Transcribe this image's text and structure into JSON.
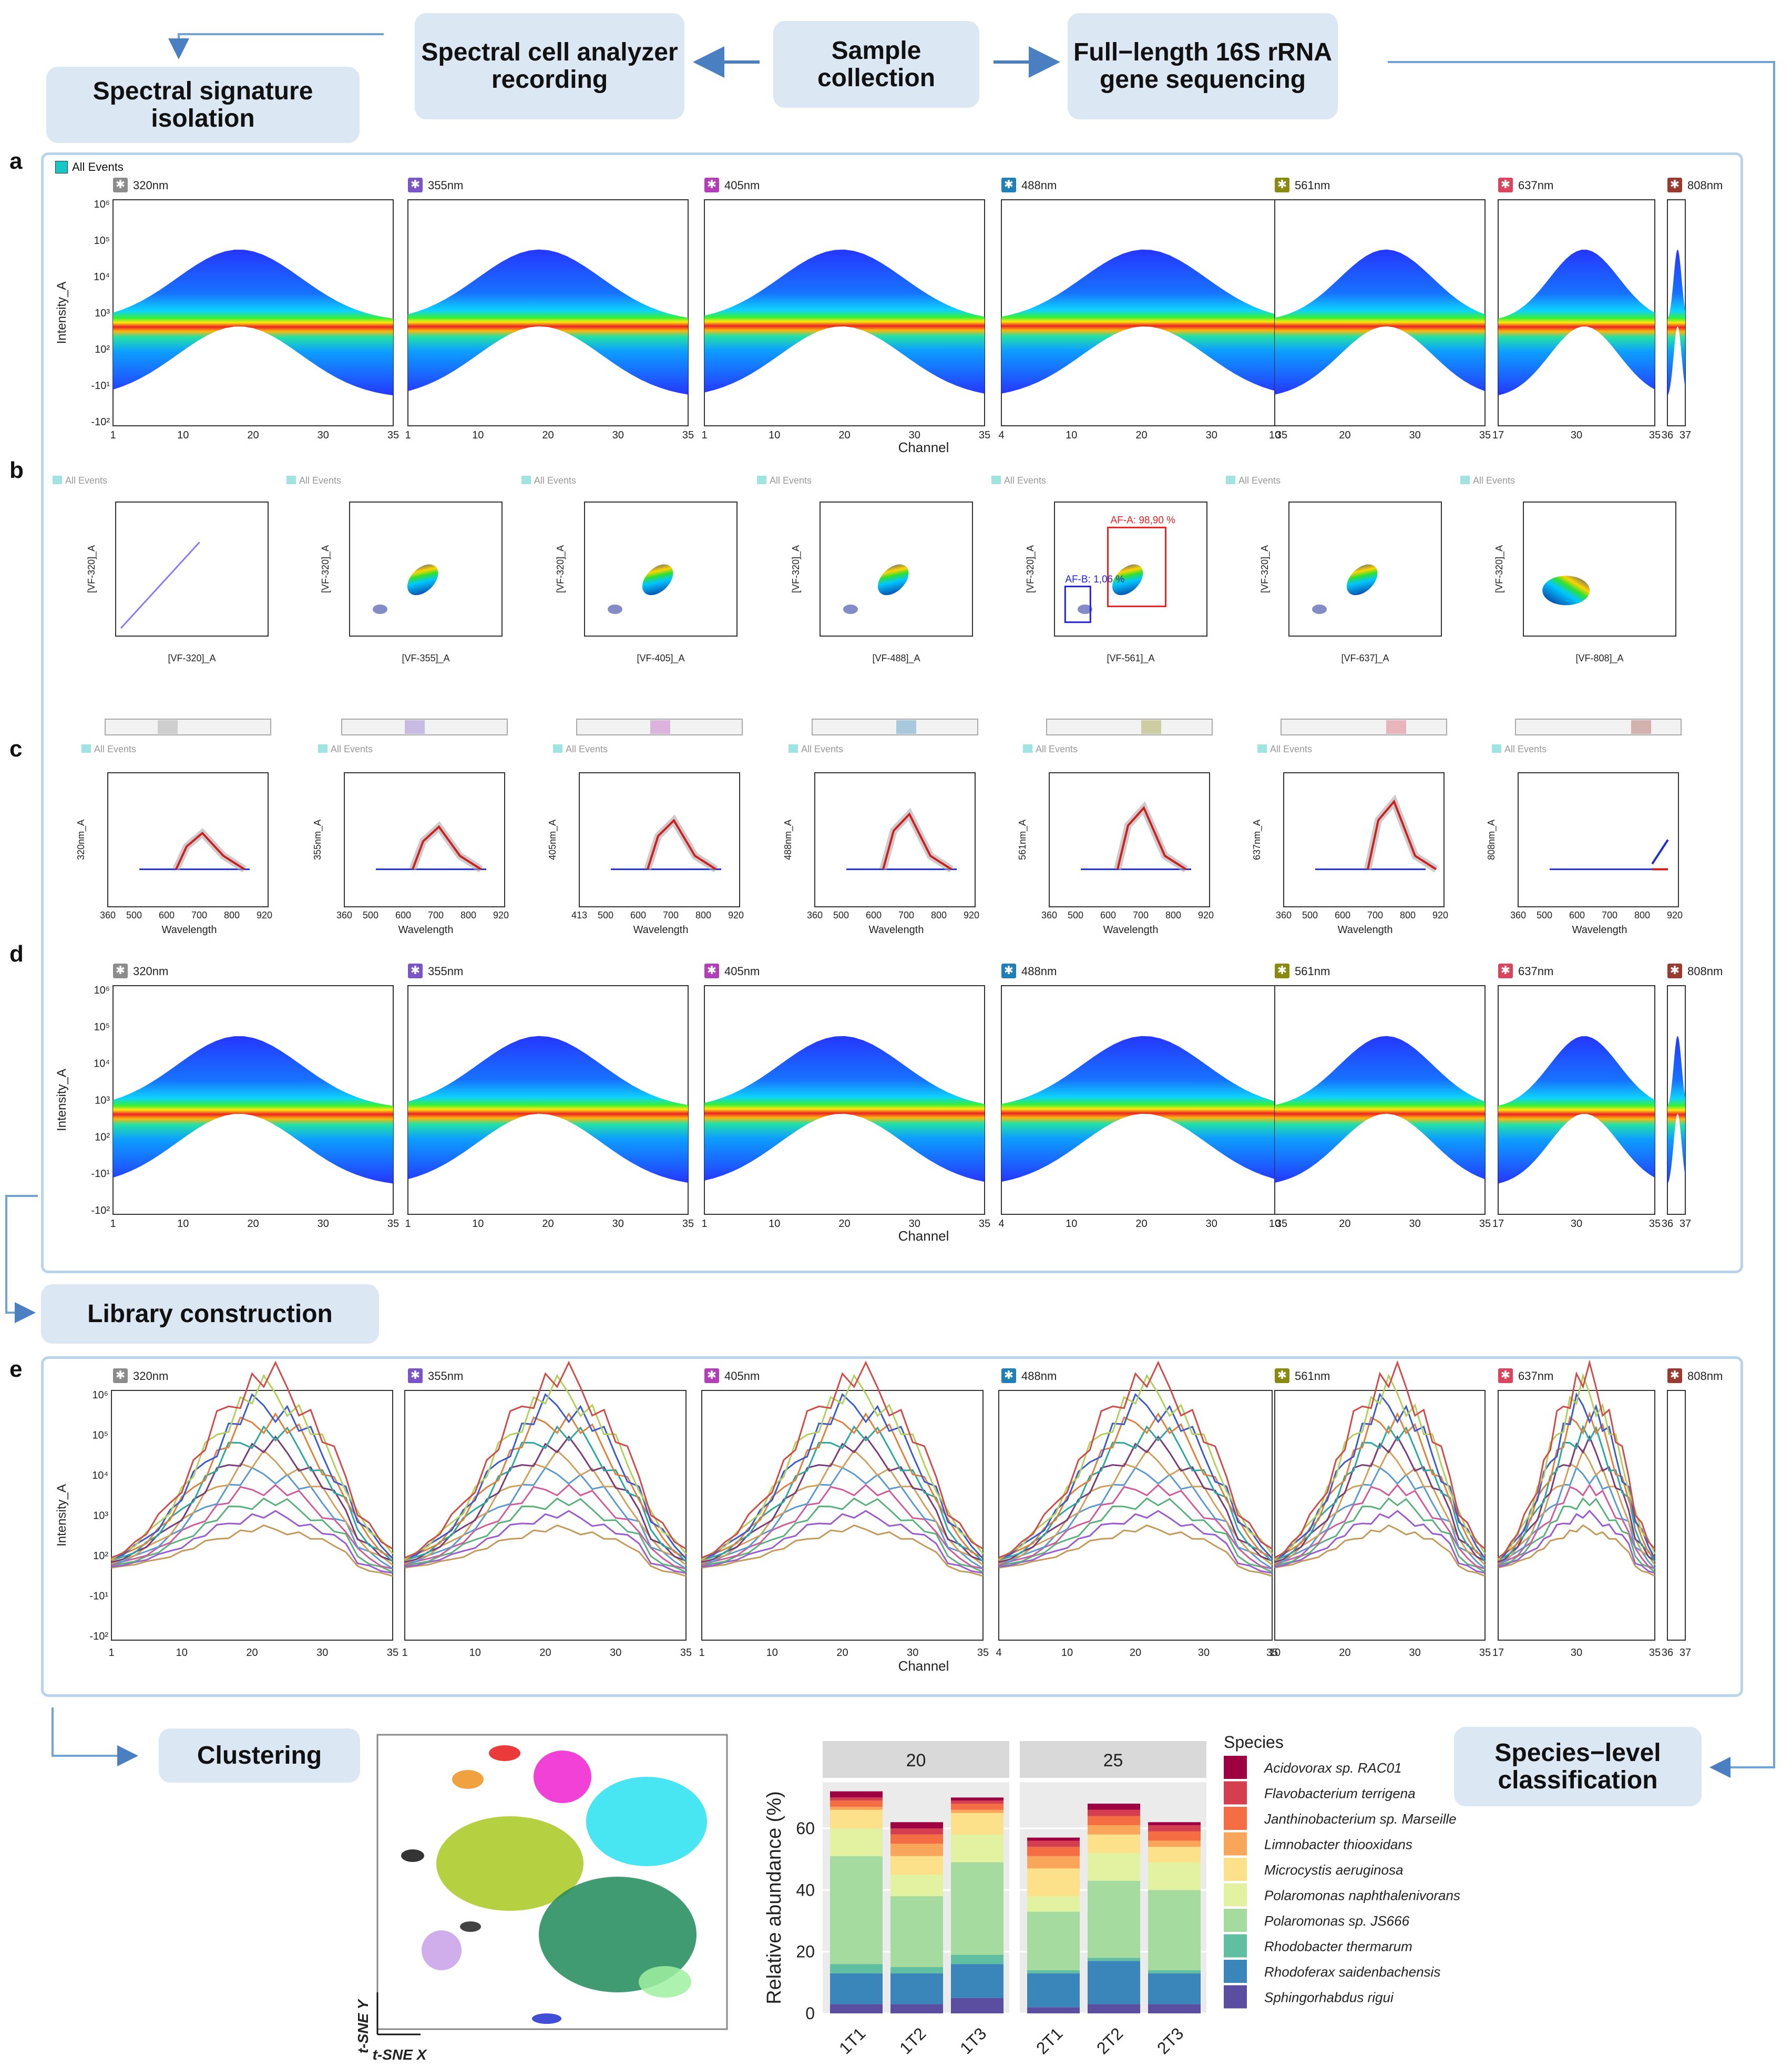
{
  "workflow": {
    "spectral_signature_isolation": "Spectral signature isolation",
    "spectral_cell_analyzer": "Spectral cell analyzer recording",
    "sample_collection": "Sample collection",
    "sequencing": "Full−length 16S rRNA gene sequencing",
    "library_construction": "Library construction",
    "clustering": "Clustering",
    "species_classification": "Species−level classification"
  },
  "panel_letters": [
    "a",
    "b",
    "c",
    "d",
    "e"
  ],
  "common": {
    "all_events": "All Events",
    "channel": "Channel",
    "intensity": "Intensity_A",
    "wavelength": "Wavelength"
  },
  "lasers": [
    {
      "name": "320nm",
      "color": "#8c8c8c",
      "ticks": [
        "1",
        "10",
        "20",
        "30",
        "35"
      ],
      "b_x": "[VF-320]_A",
      "c_y": "320nm_A",
      "c_xmin": "360"
    },
    {
      "name": "355nm",
      "color": "#7a55c8",
      "ticks": [
        "1",
        "10",
        "20",
        "30",
        "35"
      ],
      "b_x": "[VF-355]_A",
      "c_y": "355nm_A",
      "c_xmin": "360"
    },
    {
      "name": "405nm",
      "color": "#b23fb8",
      "ticks": [
        "1",
        "10",
        "20",
        "30",
        "35"
      ],
      "b_x": "[VF-405]_A",
      "c_y": "405nm_A",
      "c_xmin": "413"
    },
    {
      "name": "488nm",
      "color": "#1f7fb8",
      "ticks": [
        "4",
        "10",
        "20",
        "30",
        "35"
      ],
      "b_x": "[VF-488]_A",
      "c_y": "488nm_A",
      "c_xmin": "360"
    },
    {
      "name": "561nm",
      "color": "#8a8a10",
      "ticks": [
        "10",
        "20",
        "30",
        "35"
      ],
      "b_x": "[VF-561]_A",
      "c_y": "561nm_A",
      "c_xmin": "360"
    },
    {
      "name": "637nm",
      "color": "#d8455c",
      "ticks": [
        "17",
        "30",
        "35"
      ],
      "b_x": "[VF-637]_A",
      "c_y": "637nm_A",
      "c_xmin": "360"
    },
    {
      "name": "808nm",
      "color": "#9a3a30",
      "ticks": [
        "36",
        "37"
      ],
      "b_x": "[VF-808]_A",
      "c_y": "808nm_A",
      "c_xmin": "360"
    }
  ],
  "panel_b": {
    "y_label": "[VF-320]_A",
    "gate_a": "AF-A: 98,90 %",
    "gate_b": "AF-B: 1,06 %"
  },
  "panel_c": {
    "x_ticks": [
      "500",
      "600",
      "700",
      "800",
      "920"
    ]
  },
  "y_ticks": [
    "10^6",
    "10^5",
    "10^4",
    "10^3",
    "10^2",
    "-10^1",
    "-10^2"
  ],
  "chart_data": {
    "type": "bar",
    "stacked": true,
    "facets": [
      "20",
      "25"
    ],
    "categories": [
      "1T1",
      "1T2",
      "1T3",
      "2T1",
      "2T2",
      "2T3"
    ],
    "ylabel": "Relative abundance (%)",
    "ylim": [
      0,
      75
    ],
    "yticks": [
      "0",
      "20",
      "40",
      "60"
    ],
    "legend_title": "Species",
    "series": [
      {
        "name": "Sphingorhabdus rigui",
        "color": "#5b4ea0",
        "values": [
          3,
          3,
          5,
          2,
          3,
          3
        ]
      },
      {
        "name": "Rhodoferax saidenbachensis",
        "color": "#3a86ba",
        "values": [
          10,
          10,
          11,
          11,
          14,
          10
        ]
      },
      {
        "name": "Rhodobacter thermarum",
        "color": "#5fbfa0",
        "values": [
          3,
          2,
          3,
          1,
          1,
          1
        ]
      },
      {
        "name": "Polaromonas sp. JS666",
        "color": "#a6dba0",
        "values": [
          35,
          23,
          30,
          19,
          25,
          26
        ]
      },
      {
        "name": "Polaromonas naphthalenivorans",
        "color": "#e2f2a0",
        "values": [
          9,
          7,
          9,
          5,
          9,
          9
        ]
      },
      {
        "name": "Microcystis aeruginosa",
        "color": "#fde08a",
        "values": [
          6,
          6,
          7,
          9,
          6,
          5
        ]
      },
      {
        "name": "Limnobacter thiooxidans",
        "color": "#f9a65a",
        "values": [
          1,
          4,
          1,
          4,
          3,
          2
        ]
      },
      {
        "name": "Janthinobacterium sp. Marseille",
        "color": "#f46d43",
        "values": [
          2,
          3,
          2,
          3,
          3,
          3
        ]
      },
      {
        "name": "Flavobacterium terrigena",
        "color": "#d53e4f",
        "values": [
          1,
          2,
          1,
          2,
          2,
          2
        ]
      },
      {
        "name": "Acidovorax sp. RAC01",
        "color": "#9e0142",
        "values": [
          2,
          2,
          1,
          1,
          2,
          1
        ]
      }
    ]
  },
  "tsne": {
    "xlabel": "t-SNE X",
    "ylabel": "t-SNE Y"
  }
}
